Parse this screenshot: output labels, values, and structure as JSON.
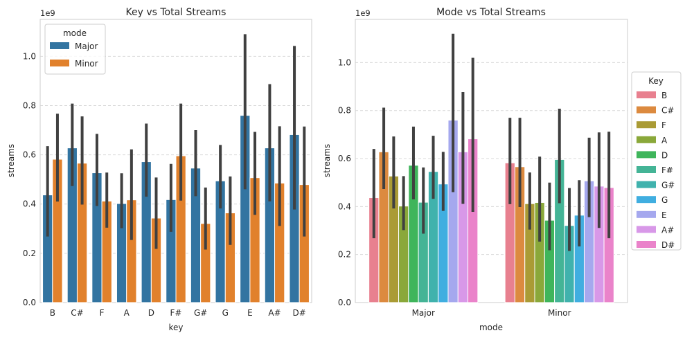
{
  "colors": {
    "grid": "#d9d9d9",
    "frame": "#cccccc",
    "errbar": "#404040",
    "text": "#262626"
  },
  "chart_data": [
    {
      "type": "bar",
      "title": "Key vs Total Streams",
      "xlabel": "key",
      "ylabel": "streams",
      "offset_label": "1e9",
      "categories": [
        "B",
        "C#",
        "F",
        "A",
        "D",
        "F#",
        "G#",
        "G",
        "E",
        "A#",
        "D#"
      ],
      "ylim": [
        0,
        1.15
      ],
      "yticks": [
        0.0,
        0.2,
        0.4,
        0.6,
        0.8,
        1.0
      ],
      "ytick_labels": [
        "0.0",
        "0.2",
        "0.4",
        "0.6",
        "0.8",
        "1.0"
      ],
      "grid": true,
      "legend": {
        "title": "mode",
        "placement": "top-left"
      },
      "series": [
        {
          "name": "Major",
          "color": "#3274a1",
          "values": [
            0.437,
            0.628,
            0.527,
            0.402,
            0.572,
            0.418,
            0.546,
            0.494,
            0.76,
            0.628,
            0.682
          ],
          "err_low": [
            0.268,
            0.473,
            0.392,
            0.302,
            0.43,
            0.287,
            0.432,
            0.382,
            0.46,
            0.411,
            0.378
          ],
          "err_high": [
            0.635,
            0.808,
            0.685,
            0.525,
            0.727,
            0.563,
            0.7,
            0.64,
            1.09,
            0.887,
            1.042
          ]
        },
        {
          "name": "Minor",
          "color": "#e1812c",
          "values": [
            0.582,
            0.566,
            0.412,
            0.417,
            0.343,
            0.596,
            0.321,
            0.364,
            0.507,
            0.485,
            0.479
          ],
          "err_low": [
            0.41,
            0.398,
            0.304,
            0.254,
            0.218,
            0.414,
            0.215,
            0.234,
            0.356,
            0.311,
            0.268
          ],
          "err_high": [
            0.767,
            0.756,
            0.528,
            0.622,
            0.508,
            0.808,
            0.467,
            0.512,
            0.693,
            0.716,
            0.715
          ]
        }
      ]
    },
    {
      "type": "bar",
      "title": "Mode vs Total Streams",
      "xlabel": "mode",
      "ylabel": "streams",
      "offset_label": "1e9",
      "categories": [
        "Major",
        "Minor"
      ],
      "ylim": [
        0,
        1.18
      ],
      "yticks": [
        0.0,
        0.2,
        0.4,
        0.6,
        0.8,
        1.0
      ],
      "ytick_labels": [
        "0.0",
        "0.2",
        "0.4",
        "0.6",
        "0.8",
        "1.0"
      ],
      "grid": true,
      "legend": {
        "title": "Key",
        "placement": "outside-right"
      },
      "series": [
        {
          "name": "B",
          "color": "#e8808f",
          "values": [
            0.437,
            0.582
          ],
          "err_low": [
            0.268,
            0.41
          ],
          "err_high": [
            0.64,
            0.77
          ]
        },
        {
          "name": "C#",
          "color": "#dc8a3f",
          "values": [
            0.628,
            0.566
          ],
          "err_low": [
            0.473,
            0.398
          ],
          "err_high": [
            0.812,
            0.77
          ]
        },
        {
          "name": "F",
          "color": "#aa9b35",
          "values": [
            0.527,
            0.412
          ],
          "err_low": [
            0.392,
            0.304
          ],
          "err_high": [
            0.692,
            0.542
          ]
        },
        {
          "name": "A",
          "color": "#8aa83a",
          "values": [
            0.402,
            0.417
          ],
          "err_low": [
            0.302,
            0.254
          ],
          "err_high": [
            0.527,
            0.608
          ]
        },
        {
          "name": "D",
          "color": "#3fb55b",
          "values": [
            0.572,
            0.343
          ],
          "err_low": [
            0.43,
            0.218
          ],
          "err_high": [
            0.733,
            0.5
          ]
        },
        {
          "name": "F#",
          "color": "#44b496",
          "values": [
            0.418,
            0.596
          ],
          "err_low": [
            0.287,
            0.414
          ],
          "err_high": [
            0.563,
            0.808
          ]
        },
        {
          "name": "G#",
          "color": "#40b2ad",
          "values": [
            0.546,
            0.321
          ],
          "err_low": [
            0.432,
            0.215
          ],
          "err_high": [
            0.695,
            0.477
          ]
        },
        {
          "name": "G",
          "color": "#40aee0",
          "values": [
            0.494,
            0.364
          ],
          "err_low": [
            0.382,
            0.234
          ],
          "err_high": [
            0.628,
            0.51
          ]
        },
        {
          "name": "E",
          "color": "#a5a8ee",
          "values": [
            0.76,
            0.507
          ],
          "err_low": [
            0.46,
            0.356
          ],
          "err_high": [
            1.12,
            0.687
          ]
        },
        {
          "name": "A#",
          "color": "#d898e8",
          "values": [
            0.628,
            0.485
          ],
          "err_low": [
            0.411,
            0.311
          ],
          "err_high": [
            0.877,
            0.709
          ]
        },
        {
          "name": "D#",
          "color": "#ea83ca",
          "values": [
            0.682,
            0.479
          ],
          "err_low": [
            0.378,
            0.268
          ],
          "err_high": [
            1.02,
            0.712
          ]
        }
      ]
    }
  ]
}
